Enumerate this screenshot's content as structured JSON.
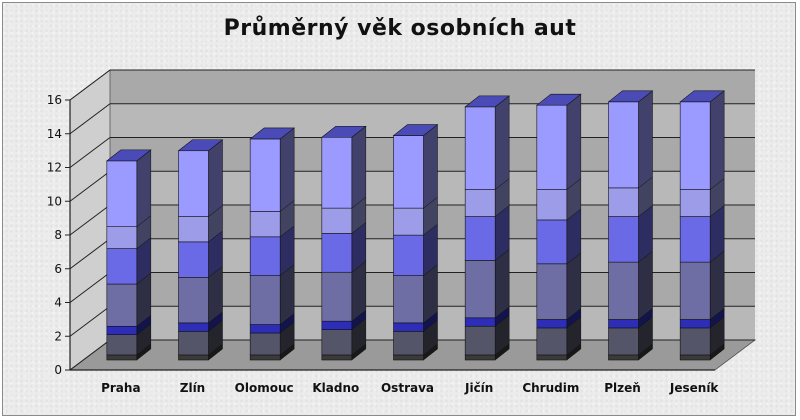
{
  "chart_data": {
    "type": "bar",
    "subtype": "3d-stacked-column",
    "title": "Průměrný věk osobních aut",
    "xlabel": "",
    "ylabel": "",
    "ylim": [
      0,
      16
    ],
    "yticks": [
      0,
      2,
      4,
      6,
      8,
      10,
      12,
      14,
      16
    ],
    "grid": true,
    "legend": "none",
    "categories": [
      "Praha",
      "Zlín",
      "Olomouc",
      "Kladno",
      "Ostrava",
      "Jičín",
      "Chrudim",
      "Plzeň",
      "Jeseník"
    ],
    "totals": [
      11.8,
      12.5,
      13.1,
      13.2,
      13.3,
      15.0,
      15.1,
      15.3,
      15.3
    ],
    "series": [
      {
        "values": [
          0.3,
          0.3,
          0.3,
          0.3,
          0.3,
          0.3,
          0.3,
          0.3,
          0.3
        ],
        "color": "#3a3a3a"
      },
      {
        "values": [
          1.2,
          1.4,
          1.3,
          1.5,
          1.4,
          1.7,
          1.6,
          1.6,
          1.6
        ],
        "color": "#55556a"
      },
      {
        "values": [
          0.5,
          0.5,
          0.5,
          0.5,
          0.5,
          0.5,
          0.5,
          0.5,
          0.5
        ],
        "color": "#2d2db8"
      },
      {
        "values": [
          2.5,
          2.7,
          2.9,
          2.9,
          2.8,
          3.4,
          3.3,
          3.4,
          3.4
        ],
        "color": "#6e6ea4"
      },
      {
        "values": [
          2.1,
          2.1,
          2.3,
          2.3,
          2.4,
          2.6,
          2.6,
          2.7,
          2.7
        ],
        "color": "#6a6ae6"
      },
      {
        "values": [
          1.3,
          1.5,
          1.5,
          1.5,
          1.6,
          1.6,
          1.8,
          1.7,
          1.6
        ],
        "color": "#9c9ce8"
      },
      {
        "values": [
          3.9,
          3.9,
          4.3,
          4.2,
          4.3,
          4.9,
          5.0,
          5.1,
          5.2
        ],
        "color": "#9a9aff"
      }
    ]
  }
}
